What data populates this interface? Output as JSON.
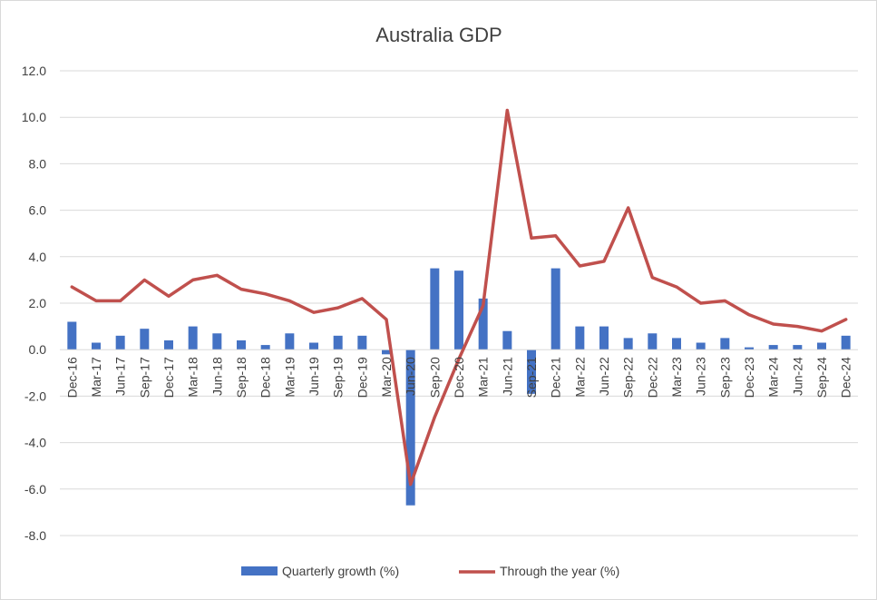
{
  "chart_data": {
    "type": "bar",
    "title": "Australia GDP",
    "xlabel": "",
    "ylabel": "",
    "ylim": [
      -8,
      12
    ],
    "y_ticks": [
      "12.0",
      "10.0",
      "8.0",
      "6.0",
      "4.0",
      "2.0",
      "0.0",
      "-2.0",
      "-4.0",
      "-6.0",
      "-8.0"
    ],
    "grid": true,
    "legend_position": "bottom",
    "categories": [
      "Dec-16",
      "Mar-17",
      "Jun-17",
      "Sep-17",
      "Dec-17",
      "Mar-18",
      "Jun-18",
      "Sep-18",
      "Dec-18",
      "Mar-19",
      "Jun-19",
      "Sep-19",
      "Dec-19",
      "Mar-20",
      "Jun-20",
      "Sep-20",
      "Dec-20",
      "Mar-21",
      "Jun-21",
      "Sep-21",
      "Dec-21",
      "Mar-22",
      "Jun-22",
      "Sep-22",
      "Dec-22",
      "Mar-23",
      "Jun-23",
      "Sep-23",
      "Dec-23",
      "Mar-24",
      "Jun-24",
      "Sep-24",
      "Dec-24"
    ],
    "series": [
      {
        "name": "Quarterly growth (%)",
        "type": "bar",
        "color": "#4472c4",
        "values": [
          1.2,
          0.3,
          0.6,
          0.9,
          0.4,
          1.0,
          0.7,
          0.4,
          0.2,
          0.7,
          0.3,
          0.6,
          0.6,
          -0.2,
          -6.7,
          3.5,
          3.4,
          2.2,
          0.8,
          -1.9,
          3.5,
          1.0,
          1.0,
          0.5,
          0.7,
          0.5,
          0.3,
          0.5,
          0.1,
          0.2,
          0.2,
          0.3,
          0.6
        ]
      },
      {
        "name": "Through the year (%)",
        "type": "line",
        "color": "#c0504d",
        "values": [
          2.7,
          2.1,
          2.1,
          3.0,
          2.3,
          3.0,
          3.2,
          2.6,
          2.4,
          2.1,
          1.6,
          1.8,
          2.2,
          1.3,
          -5.8,
          -2.9,
          -0.4,
          1.9,
          10.3,
          4.8,
          4.9,
          3.6,
          3.8,
          6.1,
          3.1,
          2.7,
          2.0,
          2.1,
          1.5,
          1.1,
          1.0,
          0.8,
          1.3
        ]
      }
    ]
  }
}
